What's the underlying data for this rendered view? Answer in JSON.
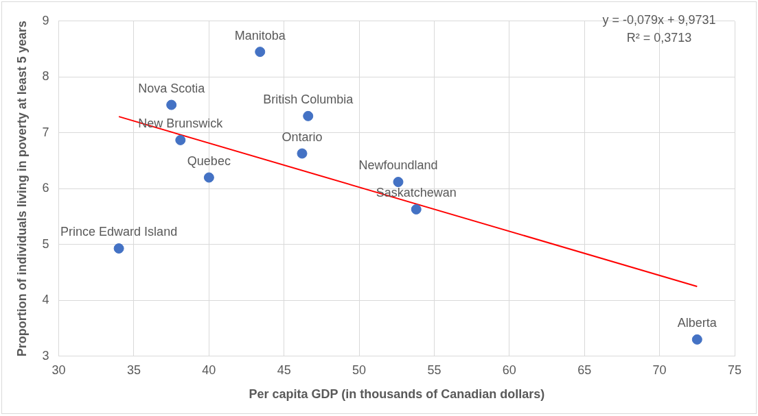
{
  "chart_data": {
    "type": "scatter",
    "xlabel": "Per capita GDP (in thousands of Canadian dollars)",
    "ylabel": "Proportion of individuals living in poverty at least 5 years",
    "series": [
      {
        "name": "Manitoba",
        "color": "#4472c4",
        "x": [
          43.4
        ],
        "values": [
          8.45
        ]
      },
      {
        "name": "Nova Scotia",
        "color": "#4472c4",
        "x": [
          37.5
        ],
        "values": [
          7.5
        ]
      },
      {
        "name": "British Columbia",
        "color": "#4472c4",
        "x": [
          46.6
        ],
        "values": [
          7.3
        ]
      },
      {
        "name": "New Brunswick",
        "color": "#4472c4",
        "x": [
          38.1
        ],
        "values": [
          6.87
        ]
      },
      {
        "name": "Ontario",
        "color": "#4472c4",
        "x": [
          46.2
        ],
        "values": [
          6.63
        ]
      },
      {
        "name": "Quebec",
        "color": "#4472c4",
        "x": [
          40.0
        ],
        "values": [
          6.2
        ]
      },
      {
        "name": "Newfoundland",
        "color": "#4472c4",
        "x": [
          52.6
        ],
        "values": [
          6.12
        ]
      },
      {
        "name": "Saskatchewan",
        "color": "#4472c4",
        "x": [
          53.8
        ],
        "values": [
          5.63
        ]
      },
      {
        "name": "Prince Edward Island",
        "color": "#4472c4",
        "x": [
          34.0
        ],
        "values": [
          4.93
        ]
      },
      {
        "name": "Alberta",
        "color": "#4472c4",
        "x": [
          72.5
        ],
        "values": [
          3.3
        ]
      },
      {
        "type": "line",
        "color": "#ff0000",
        "marker": "none",
        "x": [
          34.0,
          72.5
        ],
        "values": [
          7.29,
          4.25
        ]
      }
    ],
    "annotations": [
      "y = -0,079x + 9,9731",
      "R² = 0,3713"
    ],
    "xlim": [
      30,
      75
    ],
    "xticks": [
      30,
      35,
      40,
      45,
      50,
      55,
      60,
      65,
      70,
      75
    ],
    "ylim": [
      3,
      9
    ],
    "yticks": [
      3,
      4,
      5,
      6,
      7,
      8,
      9
    ],
    "grid": true,
    "legend": false,
    "marker": "circle"
  }
}
